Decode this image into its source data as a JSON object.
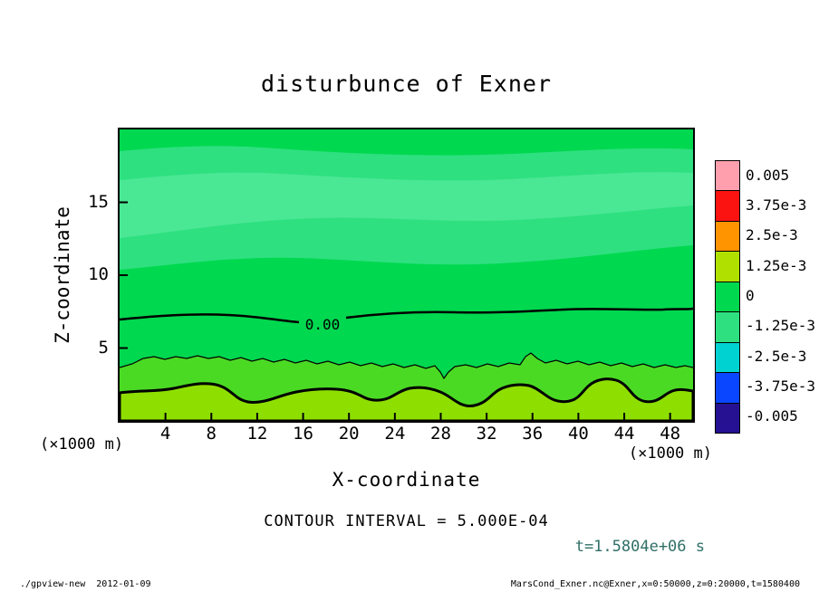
{
  "title": "disturbunce of Exner",
  "axes": {
    "x_label": "X-coordinate",
    "z_label": "Z-coordinate",
    "x_unit": "(×1000 m)",
    "z_unit": "(×1000 m)",
    "x_ticks": [
      "4",
      "8",
      "12",
      "16",
      "20",
      "24",
      "28",
      "32",
      "36",
      "40",
      "44",
      "48"
    ],
    "z_ticks": [
      "5",
      "10",
      "15"
    ]
  },
  "contour": {
    "zero_label": "0.00",
    "interval_text": "CONTOUR INTERVAL = 5.000E-04"
  },
  "time_label": "t=1.5804e+06 s",
  "colorbar": {
    "labels": [
      "0.005",
      "3.75e-3",
      "2.5e-3",
      "1.25e-3",
      "0",
      "-1.25e-3",
      "-2.5e-3",
      "-3.75e-3",
      "-0.005"
    ],
    "colors": [
      "#ff9fae",
      "#fa1310",
      "#ff9300",
      "#b0e000",
      "#00d84f",
      "#2ee080",
      "#00d2d2",
      "#0a46ff",
      "#251191"
    ]
  },
  "plot_fill": {
    "main": "#00d84f",
    "upper": "#2ee080",
    "upper_light": "#4ae794",
    "band": "#4bda24",
    "blob": "#8edf00"
  },
  "colors": {
    "time_label_text": "#2f6f66"
  },
  "footer": {
    "left": "./gpview-new  2012-01-09",
    "right": "MarsCond_Exner.nc@Exner,x=0:50000,z=0:20000,t=1580400"
  },
  "chart_data": {
    "type": "heatmap",
    "subtype": "filled-contour",
    "title": "disturbunce of Exner",
    "xlabel": "X-coordinate (×1000 m)",
    "ylabel": "Z-coordinate (×1000 m)",
    "xlim": [
      0,
      50
    ],
    "ylim": [
      0,
      20
    ],
    "x_ticks": [
      4,
      8,
      12,
      16,
      20,
      24,
      28,
      32,
      36,
      40,
      44,
      48
    ],
    "y_ticks": [
      5,
      10,
      15
    ],
    "contour_interval": 0.0005,
    "levels": [
      0.005,
      0.00375,
      0.0025,
      0.00125,
      0,
      -0.00125,
      -0.0025,
      -0.00375,
      -0.005
    ],
    "time_seconds": 1580400,
    "contour_lines": [
      {
        "level": 0,
        "label": "0.00",
        "approx_z_km": 7,
        "style": "thick"
      },
      {
        "level": 0.0005,
        "approx_z_km": 4,
        "style": "thin"
      },
      {
        "level": 0.001,
        "approx_z_km": 2,
        "style": "thick"
      }
    ],
    "field_description": "Exner function disturbance: slightly negative aloft (green/spring-green, z≈7-20 km), thick zero contour near z≈7 km, weakly positive yellow-green values below z≈4 km with surface maxima blobs near z≈1-2.5 km"
  }
}
